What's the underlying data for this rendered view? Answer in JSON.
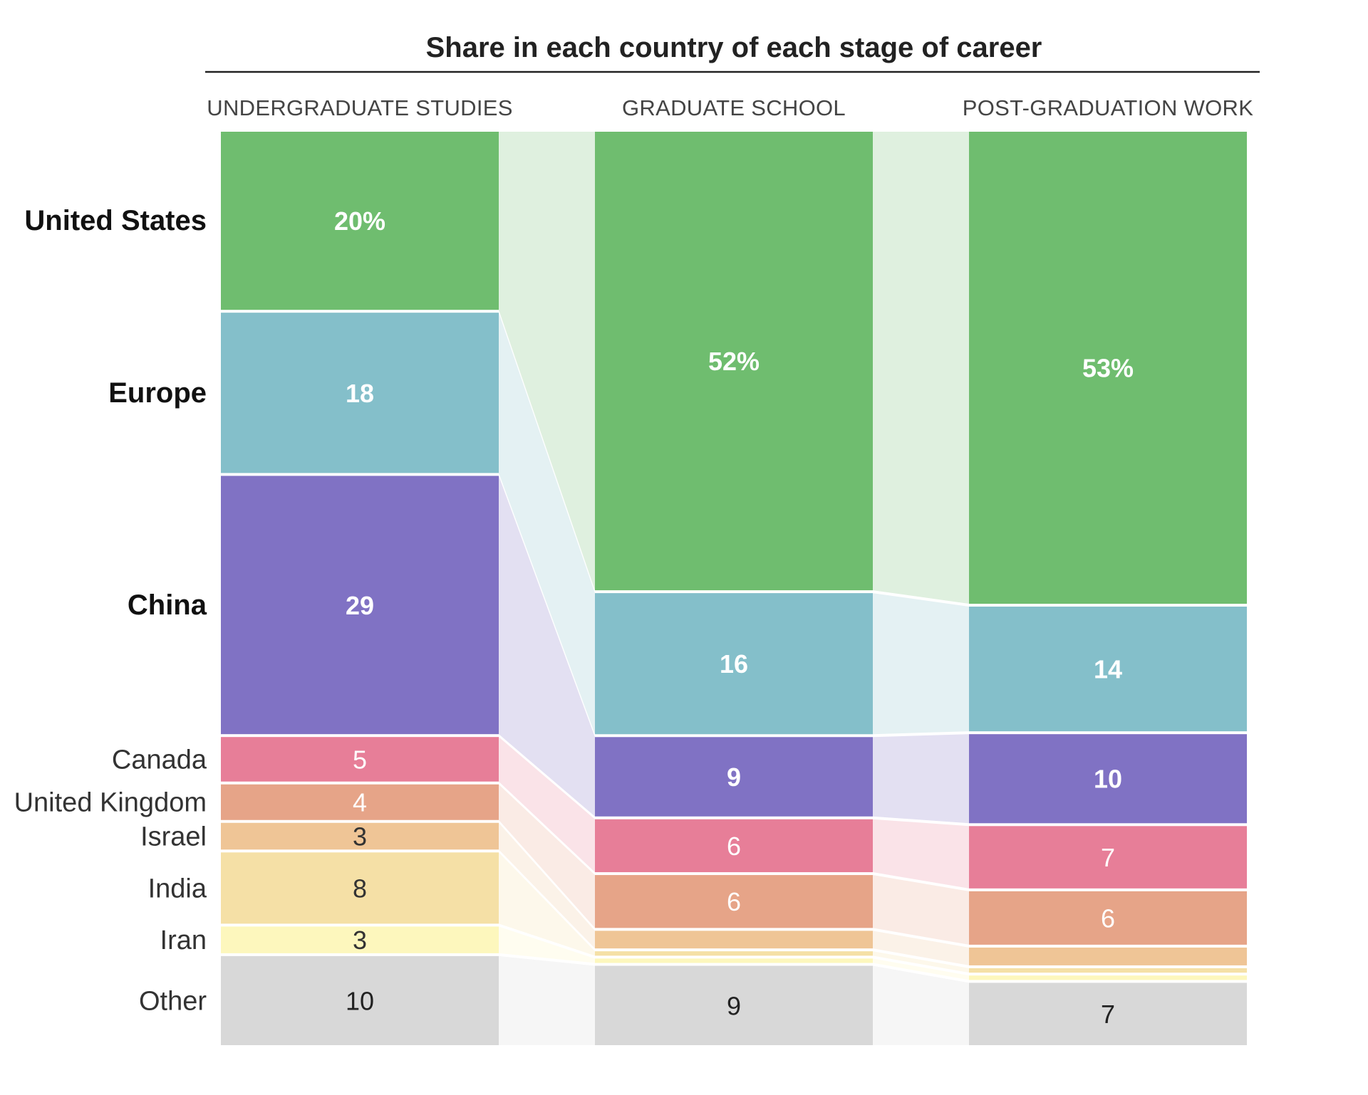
{
  "chart_data": {
    "type": "bar",
    "subtype": "stacked-100-percent-with-flows",
    "title": "Share in each country of each stage of career",
    "categories": [
      "UNDERGRADUATE STUDIES",
      "GRADUATE SCHOOL",
      "POST-GRADUATION WORK"
    ],
    "ylim": [
      0,
      100
    ],
    "series": [
      {
        "name": "United States",
        "values": [
          20,
          52,
          53
        ],
        "labels": [
          "20%",
          "52%",
          "53%"
        ],
        "color": "#6fbd6f",
        "label_color": "#ffffff",
        "bold": true
      },
      {
        "name": "Europe",
        "values": [
          18,
          16,
          14
        ],
        "labels": [
          "18",
          "16",
          "14"
        ],
        "color": "#84bfca",
        "label_color": "#ffffff",
        "bold": true
      },
      {
        "name": "China",
        "values": [
          29,
          9,
          10
        ],
        "labels": [
          "29",
          "9",
          "10"
        ],
        "color": "#8072c4",
        "label_color": "#ffffff",
        "bold": true
      },
      {
        "name": "Canada",
        "values": [
          5,
          6,
          7
        ],
        "labels": [
          "5",
          "6",
          "7"
        ],
        "color": "#e77e98",
        "label_color": "#ffffff",
        "bold": false
      },
      {
        "name": "United Kingdom",
        "values": [
          4,
          6,
          6
        ],
        "labels": [
          "4",
          "6",
          "6"
        ],
        "color": "#e6a488",
        "label_color": "#ffffff",
        "bold": false
      },
      {
        "name": "Israel",
        "values": [
          3,
          2,
          2
        ],
        "labels": [
          "3",
          "",
          ""
        ],
        "color": "#efc596",
        "label_color": "#333333",
        "bold": false
      },
      {
        "name": "India",
        "values": [
          8,
          0.5,
          0.5
        ],
        "labels": [
          "8",
          "",
          ""
        ],
        "color": "#f5e0a6",
        "label_color": "#333333",
        "bold": false
      },
      {
        "name": "Iran",
        "values": [
          3,
          0.5,
          0.5
        ],
        "labels": [
          "3",
          "",
          ""
        ],
        "color": "#fdf7bd",
        "label_color": "#333333",
        "bold": false
      },
      {
        "name": "Other",
        "values": [
          10,
          9,
          7
        ],
        "labels": [
          "10",
          "9",
          "7"
        ],
        "color": "#d8d8d8",
        "label_color": "#222222",
        "bold": false
      }
    ],
    "legend": "none",
    "grid": false
  }
}
